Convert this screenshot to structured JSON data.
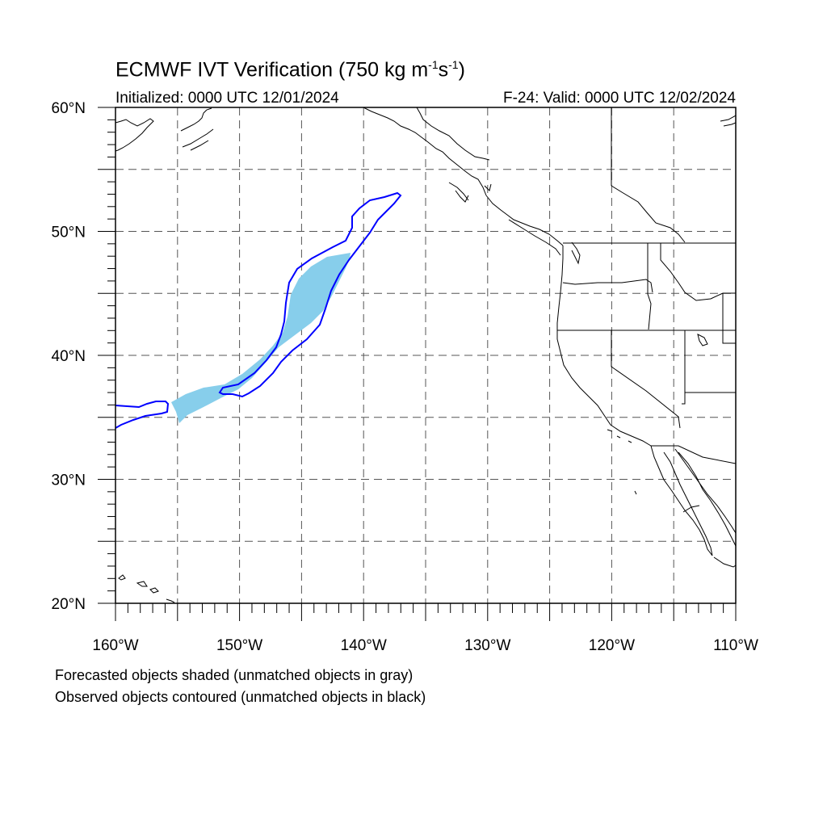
{
  "header": {
    "title_main": "ECMWF IVT Verification (750 kg m",
    "title_exp1": "-1",
    "title_mid": "s",
    "title_exp2": "-1",
    "title_end": ")",
    "initialized": "Initialized: 0000 UTC 12/01/2024",
    "valid": "F-24: Valid: 0000 UTC 12/02/2024"
  },
  "map": {
    "projection": "cylindrical equidistant",
    "lon_range": [
      -160,
      -110
    ],
    "lat_range": [
      20,
      60
    ],
    "grid": "dashed, every 5 degrees",
    "lat_labels": [
      "60°N",
      "50°N",
      "40°N",
      "30°N",
      "20°N"
    ],
    "lon_labels": [
      "160°W",
      "150°W",
      "140°W",
      "130°W",
      "120°W",
      "110°W"
    ]
  },
  "objects": {
    "forecast_color": "#87ceeb",
    "observed_color": "#0000ff",
    "coastline_color": "#000000"
  },
  "footer": {
    "line1": "Forecasted objects shaded (unmatched objects in gray)",
    "line2": "Observed objects contoured (unmatched objects in black)"
  }
}
